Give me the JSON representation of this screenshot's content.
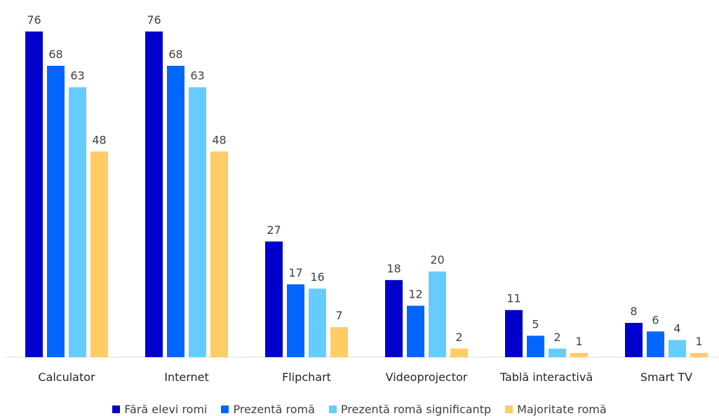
{
  "chart_data": {
    "type": "bar",
    "categories": [
      "Calculator",
      "Internet",
      "Flipchart",
      "Videoprojector",
      "Tablă interactivă",
      "Smart TV"
    ],
    "series": [
      {
        "name": "Fără elevi romi",
        "color": "#0000CC",
        "values": [
          76,
          76,
          27,
          18,
          11,
          8
        ]
      },
      {
        "name": "Prezentă romă",
        "color": "#0066FF",
        "values": [
          68,
          68,
          17,
          12,
          5,
          6
        ]
      },
      {
        "name": "Prezentă romă significantp",
        "color": "#66CCFF",
        "values": [
          63,
          63,
          16,
          20,
          2,
          4
        ]
      },
      {
        "name": "Majoritate romă",
        "color": "#FFCC66",
        "values": [
          48,
          48,
          7,
          2,
          1,
          1
        ]
      }
    ],
    "ylim": [
      0,
      76
    ],
    "grid": false,
    "legend_position": "bottom"
  }
}
